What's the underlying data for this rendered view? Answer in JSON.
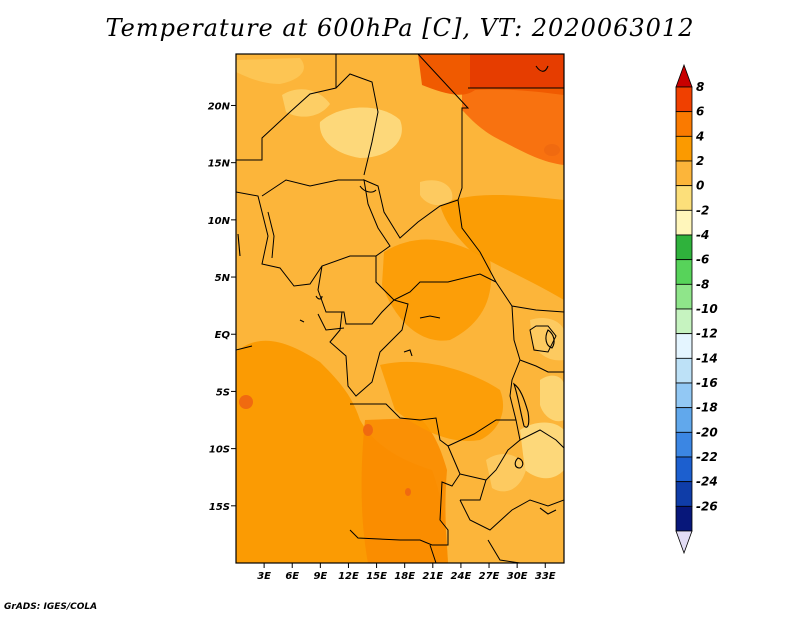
{
  "title": "Temperature at 600hPa [C], VT: 2020063012",
  "footer": "GrADS: IGES/COLA",
  "map": {
    "lat_range": [
      -20,
      24.5
    ],
    "lon_range": [
      0,
      35
    ],
    "y_ticks": [
      "20N",
      "15N",
      "10N",
      "5N",
      "EQ",
      "5S",
      "10S",
      "15S"
    ],
    "x_ticks": [
      "3E",
      "6E",
      "9E",
      "12E",
      "15E",
      "18E",
      "21E",
      "24E",
      "27E",
      "30E",
      "33E"
    ]
  },
  "colorbar": {
    "labels": [
      "8",
      "6",
      "4",
      "2",
      "0",
      "-2",
      "-4",
      "-6",
      "-8",
      "-10",
      "-12",
      "-14",
      "-16",
      "-18",
      "-20",
      "-22",
      "-24",
      "-26"
    ],
    "colors": [
      "#c80000",
      "#f04000",
      "#fa7a00",
      "#fb9a00",
      "#fcb53a",
      "#fcdf7a",
      "#fff6bb",
      "#2fb23c",
      "#57d35a",
      "#8fe58a",
      "#c6f3c0",
      "#e4f5ff",
      "#bde1f7",
      "#92c8f4",
      "#61a8ec",
      "#3b86e3",
      "#1c5fcf",
      "#0f3da8",
      "#07177a",
      "#e2dcf4"
    ]
  }
}
